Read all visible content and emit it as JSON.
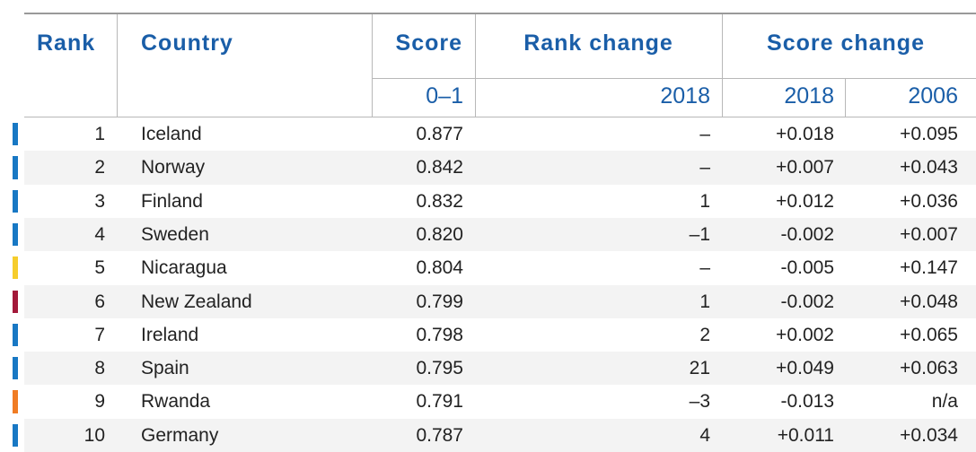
{
  "header": {
    "rank": "Rank",
    "country": "Country",
    "score": "Score",
    "rank_change": "Rank change",
    "score_change": "Score change",
    "sub": {
      "score": "0–1",
      "rank_change": "2018",
      "score_change_2018": "2018",
      "score_change_2006": "2006"
    }
  },
  "rows": [
    {
      "rank": "1",
      "country": "Iceland",
      "score": "0.877",
      "rank_change": "–",
      "score_change_2018": "+0.018",
      "score_change_2006": "+0.095",
      "color": "#1878c4"
    },
    {
      "rank": "2",
      "country": "Norway",
      "score": "0.842",
      "rank_change": "–",
      "score_change_2018": "+0.007",
      "score_change_2006": "+0.043",
      "color": "#1878c4"
    },
    {
      "rank": "3",
      "country": "Finland",
      "score": "0.832",
      "rank_change": "1",
      "score_change_2018": "+0.012",
      "score_change_2006": "+0.036",
      "color": "#1878c4"
    },
    {
      "rank": "4",
      "country": "Sweden",
      "score": "0.820",
      "rank_change": "–1",
      "score_change_2018": "-0.002",
      "score_change_2006": "+0.007",
      "color": "#1878c4"
    },
    {
      "rank": "5",
      "country": "Nicaragua",
      "score": "0.804",
      "rank_change": "–",
      "score_change_2018": "-0.005",
      "score_change_2006": "+0.147",
      "color": "#f6cd2c"
    },
    {
      "rank": "6",
      "country": "New Zealand",
      "score": "0.799",
      "rank_change": "1",
      "score_change_2018": "-0.002",
      "score_change_2006": "+0.048",
      "color": "#a3193a"
    },
    {
      "rank": "7",
      "country": "Ireland",
      "score": "0.798",
      "rank_change": "2",
      "score_change_2018": "+0.002",
      "score_change_2006": "+0.065",
      "color": "#1878c4"
    },
    {
      "rank": "8",
      "country": "Spain",
      "score": "0.795",
      "rank_change": "21",
      "score_change_2018": "+0.049",
      "score_change_2006": "+0.063",
      "color": "#1878c4"
    },
    {
      "rank": "9",
      "country": "Rwanda",
      "score": "0.791",
      "rank_change": "–3",
      "score_change_2018": "-0.013",
      "score_change_2006": "n/a",
      "color": "#f07c24"
    },
    {
      "rank": "10",
      "country": "Germany",
      "score": "0.787",
      "rank_change": "4",
      "score_change_2018": "+0.011",
      "score_change_2006": "+0.034",
      "color": "#1878c4"
    }
  ]
}
